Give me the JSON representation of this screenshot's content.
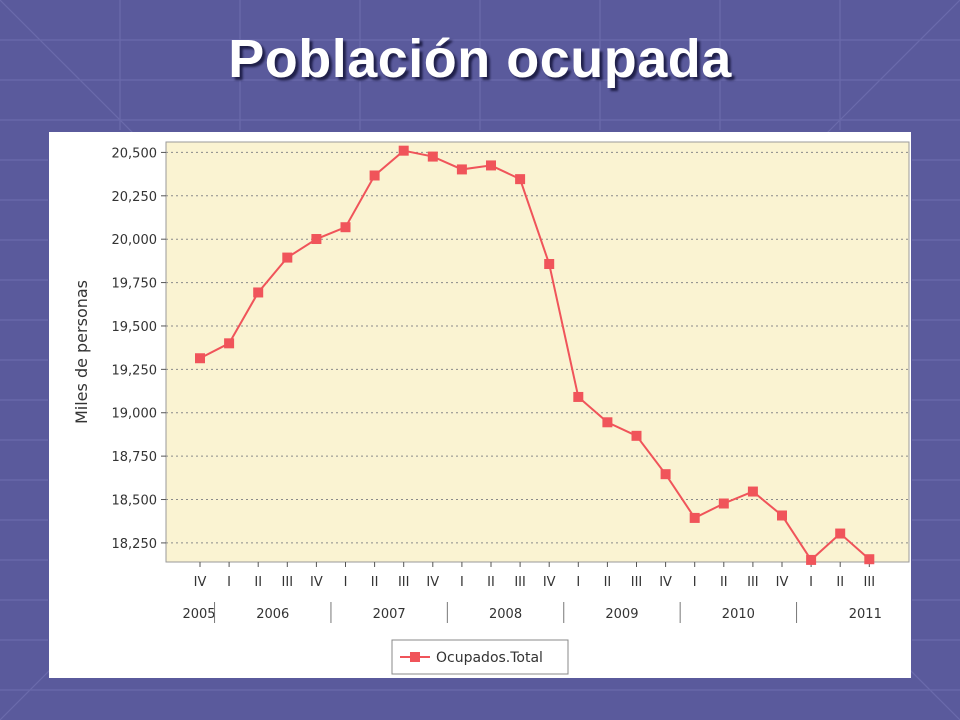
{
  "slide": {
    "title": "Población ocupada"
  },
  "colors": {
    "background": "#5a5a9c",
    "plot_bg": "#faf3d2",
    "series": "#f0545a",
    "grid": "#8a8a8a"
  },
  "chart_data": {
    "type": "line",
    "title": "",
    "ylabel": "Miles de personas",
    "xlabel": "",
    "ylim": [
      18140,
      20560
    ],
    "yticks": [
      18250,
      18500,
      18750,
      19000,
      19250,
      19500,
      19750,
      20000,
      20250,
      20500
    ],
    "ytick_labels": [
      "18,250",
      "18,500",
      "18,750",
      "19,000",
      "19,250",
      "19,500",
      "19,750",
      "20,000",
      "20,250",
      "20,500"
    ],
    "grid": true,
    "legend_position": "bottom-center",
    "x": [
      "IV",
      "I",
      "II",
      "III",
      "IV",
      "I",
      "II",
      "III",
      "IV",
      "I",
      "II",
      "III",
      "IV",
      "I",
      "II",
      "III",
      "IV",
      "I",
      "II",
      "III",
      "IV",
      "I",
      "II",
      "III"
    ],
    "years": [
      {
        "label": "2005",
        "span": 1
      },
      {
        "label": "2006",
        "span": 4
      },
      {
        "label": "2007",
        "span": 4
      },
      {
        "label": "2008",
        "span": 4
      },
      {
        "label": "2009",
        "span": 4
      },
      {
        "label": "2010",
        "span": 4
      },
      {
        "label": "2011",
        "span": 3
      }
    ],
    "series": [
      {
        "name": "Ocupados.Total",
        "values": [
          19314,
          19400,
          19693,
          19894,
          20001,
          20069,
          20367,
          20510,
          20476,
          20402,
          20425,
          20346,
          19857,
          19091,
          18945,
          18867,
          18646,
          18394,
          18477,
          18546,
          18408,
          18152,
          18304,
          18156
        ]
      }
    ]
  }
}
